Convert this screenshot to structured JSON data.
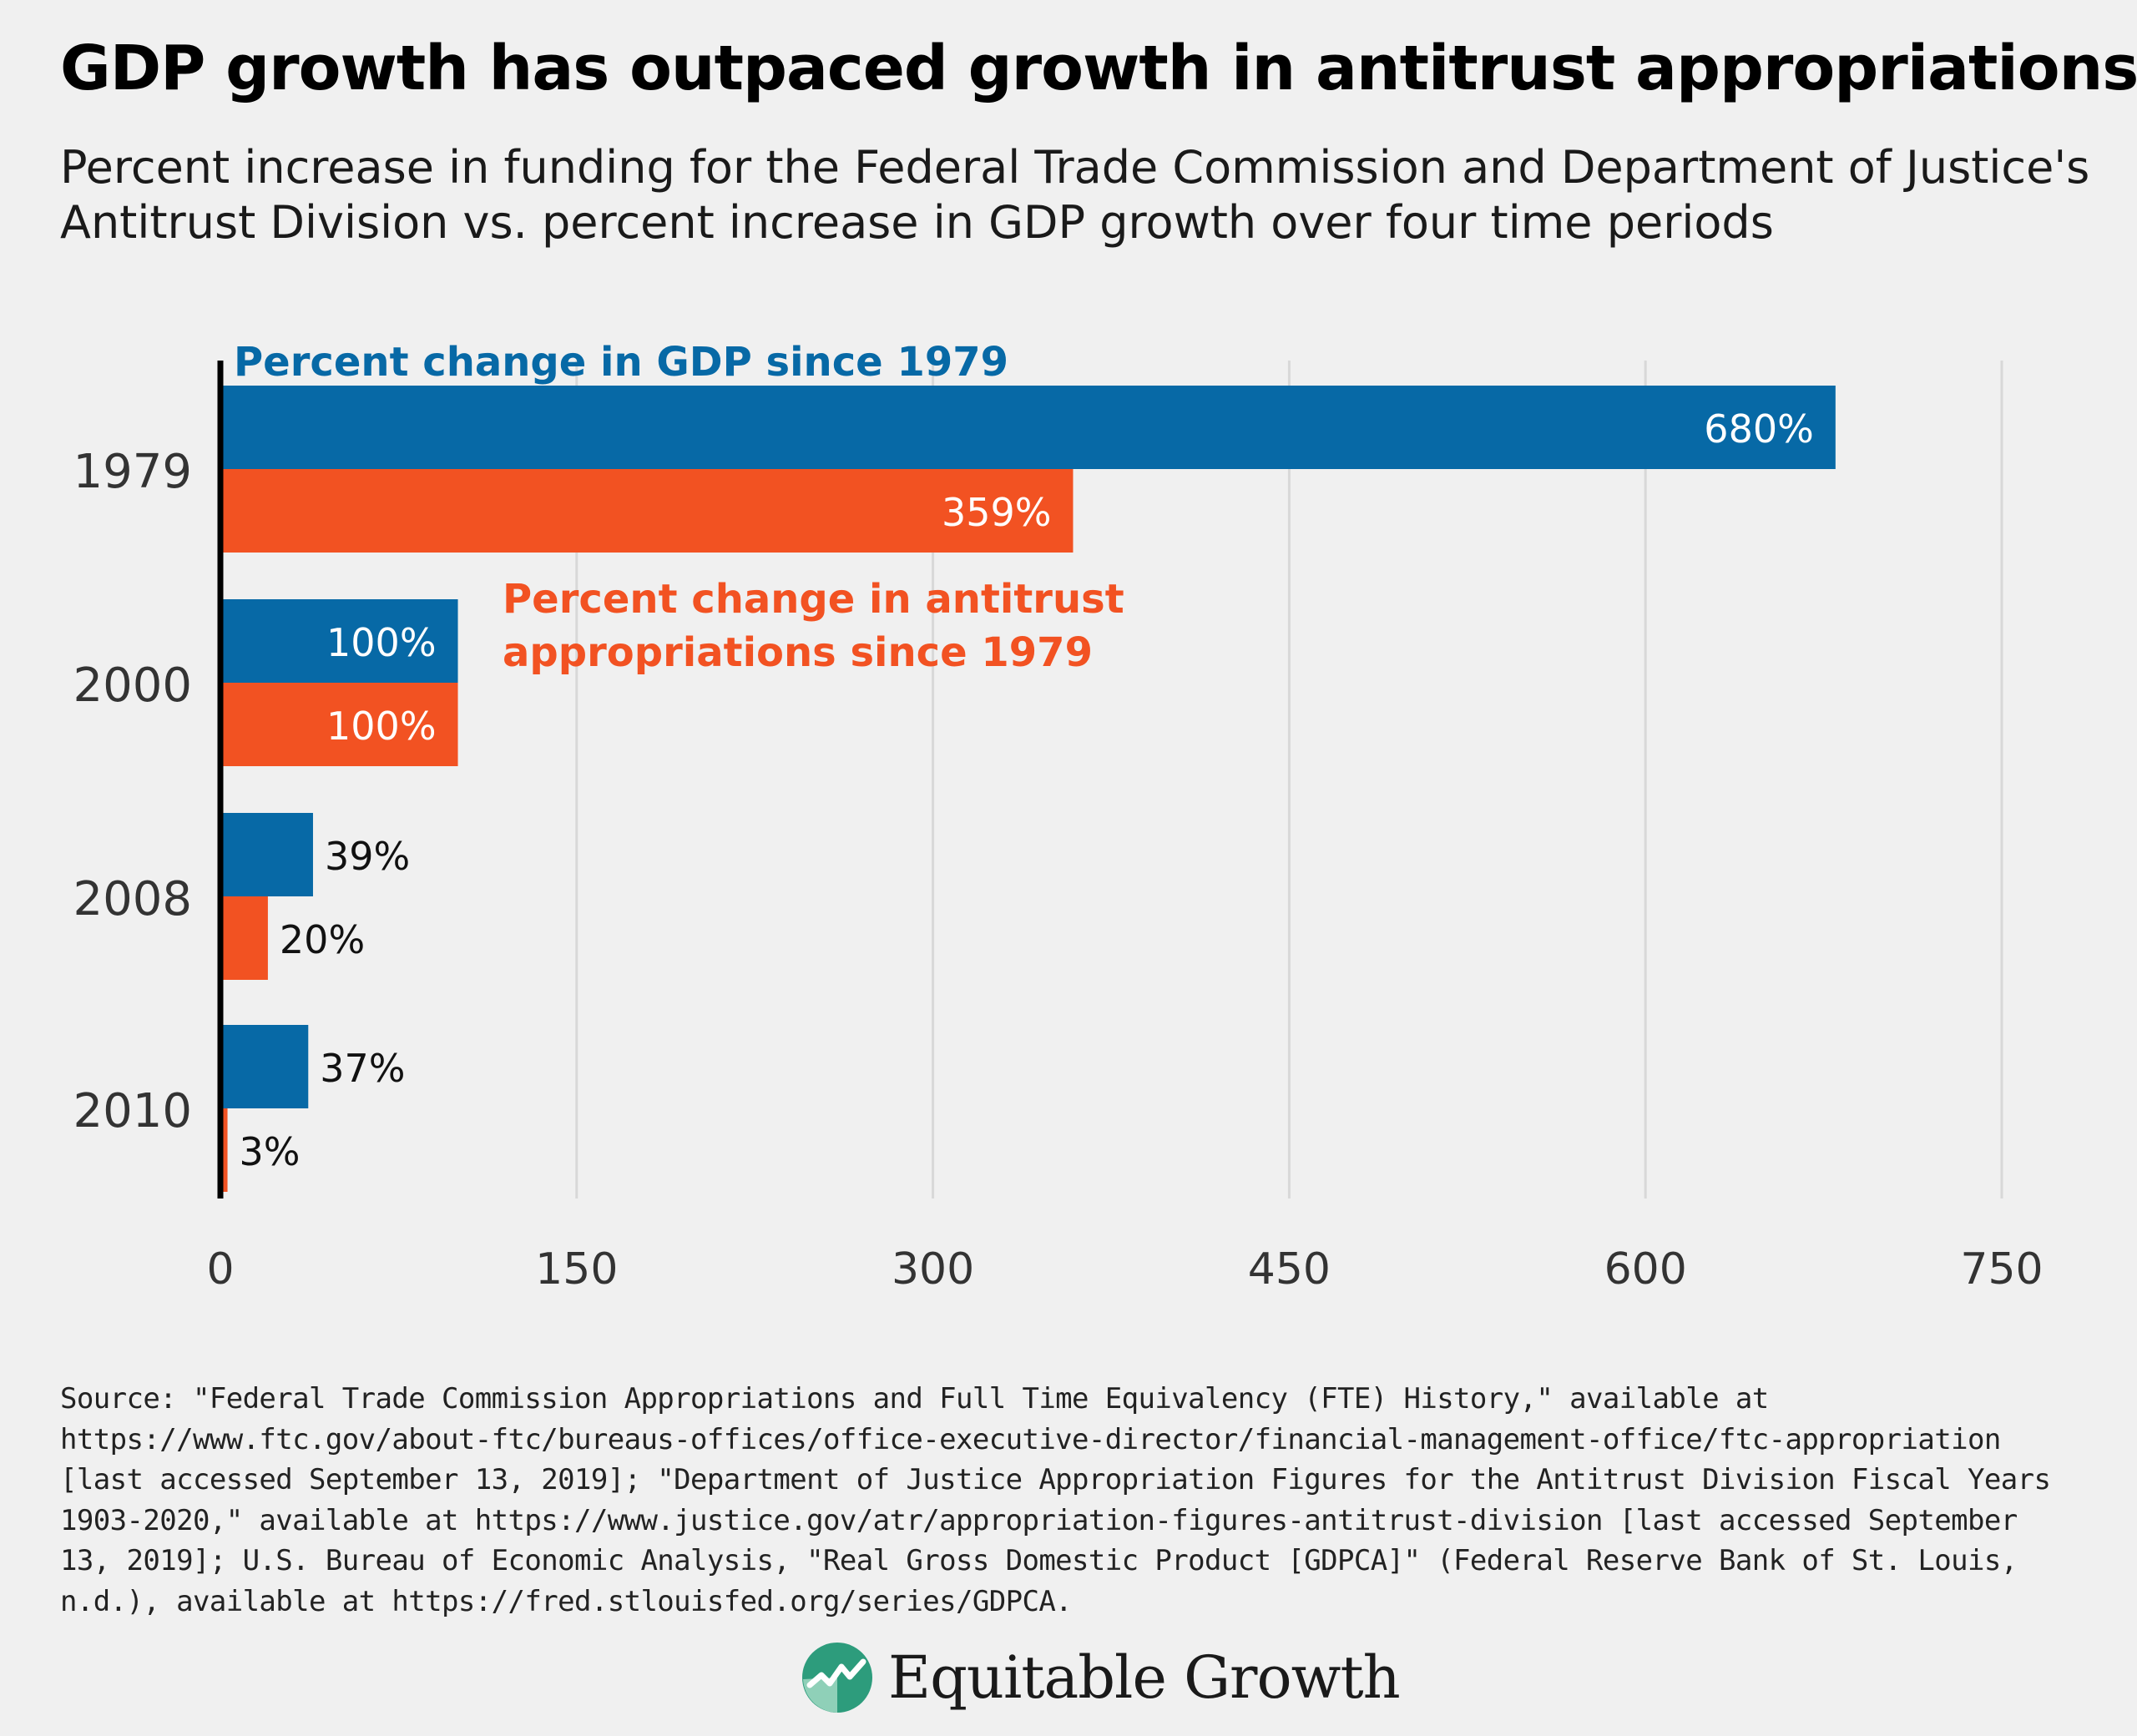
{
  "title": "GDP growth has outpaced growth in antitrust appropriations",
  "subtitle": "Percent increase in funding for the Federal Trade Commission and Department of Justice's Antitrust Division vs. percent increase in GDP growth over four time periods",
  "chart_data": {
    "type": "bar",
    "orientation": "horizontal",
    "categories": [
      "1979",
      "2000",
      "2008",
      "2010"
    ],
    "series": [
      {
        "name": "Percent change in GDP since 1979",
        "values": [
          680,
          100,
          39,
          37
        ],
        "labels": [
          "680%",
          "100%",
          "39%",
          "37%"
        ],
        "color": "#0769a6"
      },
      {
        "name": "Percent change in antitrust appropriations since 1979",
        "values": [
          359,
          100,
          20,
          3
        ],
        "labels": [
          "359%",
          "100%",
          "20%",
          "3%"
        ],
        "color": "#f25222"
      }
    ],
    "annotation_gdp": "Percent change in GDP since 1979",
    "annotation_antitrust_lines": [
      "Percent change in antitrust",
      "appropriations since 1979"
    ],
    "xlim": [
      0,
      750
    ],
    "xticks": [
      0,
      150,
      300,
      450,
      600,
      750
    ],
    "grid": true,
    "xlabel": "",
    "ylabel": ""
  },
  "source": "Source: \"Federal Trade Commission Appropriations and Full Time Equivalency (FTE) History,\" available at https://www.ftc.gov/about-ftc/bureaus-offices/office-executive-director/financial-management-office/ftc-appropriation [last accessed September 13, 2019]; \"Department of Justice Appropriation Figures for the Antitrust Division Fiscal Years 1903-2020,\" available at https://www.justice.gov/atr/appropriation-figures-antitrust-division [last accessed September 13, 2019]; U.S. Bureau of Economic Analysis, \"Real Gross Domestic Product [GDPCA]\" (Federal Reserve Bank of St. Louis, n.d.), available at https://fred.stlouisfed.org/series/GDPCA.",
  "brand": {
    "name": "Equitable Growth",
    "icon": "trend-line-logo-icon",
    "color": "#2d9c7c"
  },
  "colors": {
    "gdp": "#0769a6",
    "antitrust": "#f25222",
    "grid": "#d8d8d8",
    "axis": "#000000"
  }
}
